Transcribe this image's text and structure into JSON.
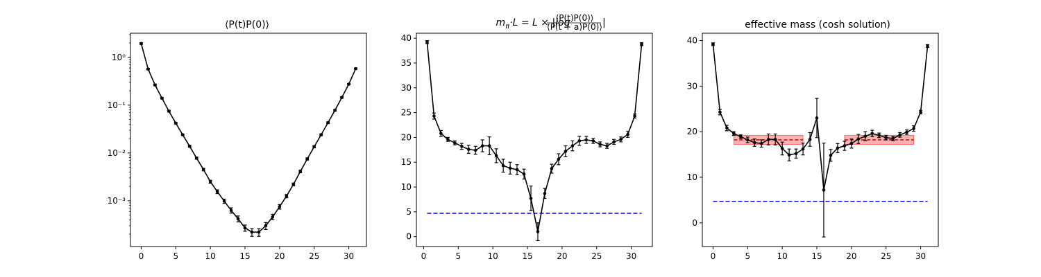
{
  "figure": {
    "background": "#ffffff"
  },
  "chart_data": [
    {
      "type": "line",
      "title": "⟨P(t)P(0)⟩",
      "xlabel": "",
      "ylabel": "",
      "yscale": "log",
      "xlim": [
        -1.55,
        32.55
      ],
      "ylim": [
        0.00011,
        3.2
      ],
      "xticks": [
        0,
        5,
        10,
        15,
        20,
        25,
        30
      ],
      "xtick_labels": [
        "0",
        "5",
        "10",
        "15",
        "20",
        "25",
        "30"
      ],
      "yticks": [
        0.001,
        0.01,
        0.1,
        1
      ],
      "ytick_labels": [
        "10⁻³",
        "10⁻²",
        "10⁻¹",
        "10⁰"
      ],
      "grid": false,
      "series": [
        {
          "color": "#000000",
          "x": [
            0,
            1,
            2,
            3,
            4,
            5,
            6,
            7,
            8,
            9,
            10,
            11,
            12,
            13,
            14,
            15,
            16,
            17,
            18,
            19,
            20,
            21,
            22,
            23,
            24,
            25,
            26,
            27,
            28,
            29,
            30,
            31
          ],
          "y": [
            1.95,
            0.57,
            0.265,
            0.14,
            0.075,
            0.042,
            0.024,
            0.0138,
            0.0078,
            0.0045,
            0.0025,
            0.00155,
            0.00098,
            0.00063,
            0.00042,
            0.00027,
            0.00022,
            0.00022,
            0.0003,
            0.00046,
            0.00075,
            0.00125,
            0.0022,
            0.0041,
            0.0075,
            0.0135,
            0.024,
            0.043,
            0.078,
            0.145,
            0.275,
            0.58
          ],
          "err": [
            0.08,
            0.02,
            0.01,
            0.005,
            0.003,
            0.0015,
            0.0009,
            0.0006,
            0.0004,
            0.00028,
            0.00018,
            0.00014,
            0.0001,
            8e-05,
            6e-05,
            4e-05,
            4e-05,
            4e-05,
            5e-05,
            6e-05,
            8e-05,
            0.0001,
            0.00015,
            0.00025,
            0.0004,
            0.0007,
            0.0011,
            0.0018,
            0.003,
            0.005,
            0.009,
            0.018
          ]
        }
      ]
    },
    {
      "type": "line",
      "title": "m_π·L = L × |log ⟨P(t)P(0)⟩ / ⟨P(t+a)P(0)⟩|",
      "title_parts": {
        "lhs_main": "m",
        "lhs_sub": "π",
        "lhs_rest": "·L = L × |log",
        "numerator": "⟨P(t)P(0)⟩",
        "denominator": "⟨P(t + a)P(0)⟩",
        "close": "|"
      },
      "xlabel": "",
      "ylabel": "",
      "xlim": [
        -1.05,
        33.05
      ],
      "ylim": [
        -2.0,
        41.0
      ],
      "xticks": [
        0,
        5,
        10,
        15,
        20,
        25,
        30
      ],
      "xtick_labels": [
        "0",
        "5",
        "10",
        "15",
        "20",
        "25",
        "30"
      ],
      "yticks": [
        0,
        5,
        10,
        15,
        20,
        25,
        30,
        35,
        40
      ],
      "ytick_labels": [
        "0",
        "5",
        "10",
        "15",
        "20",
        "25",
        "30",
        "35",
        "40"
      ],
      "grid": false,
      "series": [
        {
          "color": "#000000",
          "x": [
            0.5,
            1.5,
            2.5,
            3.5,
            4.5,
            5.5,
            6.5,
            7.5,
            8.5,
            9.5,
            10.5,
            11.5,
            12.5,
            13.5,
            14.5,
            15.5,
            16.5,
            17.5,
            18.5,
            19.5,
            20.5,
            21.5,
            22.5,
            23.5,
            24.5,
            25.5,
            26.5,
            27.5,
            28.5,
            29.5,
            30.5,
            31.5
          ],
          "y": [
            39.2,
            24.3,
            20.8,
            19.6,
            18.9,
            18.2,
            17.6,
            17.4,
            18.3,
            18.3,
            16.3,
            14.3,
            13.8,
            13.5,
            12.6,
            7.7,
            1.0,
            8.7,
            13.7,
            15.6,
            17.2,
            18.3,
            19.3,
            19.5,
            19.3,
            18.6,
            18.3,
            19.1,
            19.6,
            20.6,
            24.3,
            38.8
          ],
          "err": [
            0.3,
            0.6,
            0.6,
            0.4,
            0.4,
            0.6,
            0.8,
            0.8,
            1.2,
            1.8,
            1.4,
            1.3,
            1.2,
            1.0,
            1.0,
            2.5,
            1.8,
            1.0,
            0.9,
            1.1,
            1.1,
            1.0,
            0.9,
            0.7,
            0.5,
            0.5,
            0.5,
            0.5,
            0.5,
            0.6,
            0.4,
            0.3
          ]
        }
      ],
      "reference_lines": [
        {
          "y": 4.7,
          "x_from": 0.5,
          "x_to": 31.5,
          "color": "#0000ff",
          "style": "dashed"
        }
      ]
    },
    {
      "type": "line",
      "title": "effective mass (cosh solution)",
      "xlabel": "",
      "ylabel": "",
      "xlim": [
        -1.55,
        32.55
      ],
      "ylim": [
        -5.2,
        41.6
      ],
      "xticks": [
        0,
        5,
        10,
        15,
        20,
        25,
        30
      ],
      "xtick_labels": [
        "0",
        "5",
        "10",
        "15",
        "20",
        "25",
        "30"
      ],
      "yticks": [
        0,
        10,
        20,
        30,
        40
      ],
      "ytick_labels": [
        "0",
        "10",
        "20",
        "30",
        "40"
      ],
      "grid": false,
      "series": [
        {
          "color": "#000000",
          "x": [
            0,
            1,
            2,
            3,
            4,
            5,
            6,
            7,
            8,
            9,
            10,
            11,
            12,
            13,
            14,
            15,
            16,
            17,
            18,
            19,
            20,
            21,
            22,
            23,
            24,
            25,
            26,
            27,
            28,
            29,
            30,
            31
          ],
          "y": [
            39.2,
            24.3,
            20.8,
            19.6,
            18.9,
            18.2,
            17.6,
            17.4,
            18.3,
            18.3,
            16.3,
            14.9,
            15.2,
            16.2,
            18.3,
            23.0,
            7.2,
            14.8,
            16.4,
            16.9,
            17.4,
            18.4,
            19.0,
            19.6,
            19.2,
            18.7,
            18.5,
            19.3,
            19.9,
            20.7,
            24.3,
            38.8
          ],
          "err": [
            0.3,
            0.6,
            0.6,
            0.4,
            0.4,
            0.6,
            0.8,
            0.8,
            1.2,
            1.2,
            1.4,
            1.3,
            1.0,
            1.3,
            1.5,
            4.3,
            10.3,
            1.3,
            1.0,
            1.0,
            1.0,
            1.0,
            1.0,
            0.7,
            0.5,
            0.5,
            0.5,
            0.5,
            0.5,
            0.6,
            0.4,
            0.3
          ]
        }
      ],
      "fit_bands": [
        {
          "x_from": 3,
          "x_to": 13,
          "value": 18.2,
          "err": 1.0,
          "fill": "#ff0000",
          "fill_opacity": 0.3,
          "line_color": "#cc0000"
        },
        {
          "x_from": 19,
          "x_to": 29,
          "value": 18.2,
          "err": 1.0,
          "fill": "#ff0000",
          "fill_opacity": 0.3,
          "line_color": "#cc0000"
        }
      ],
      "reference_lines": [
        {
          "y": 4.7,
          "x_from": 0,
          "x_to": 31,
          "color": "#0000ff",
          "style": "dashed"
        }
      ]
    }
  ]
}
